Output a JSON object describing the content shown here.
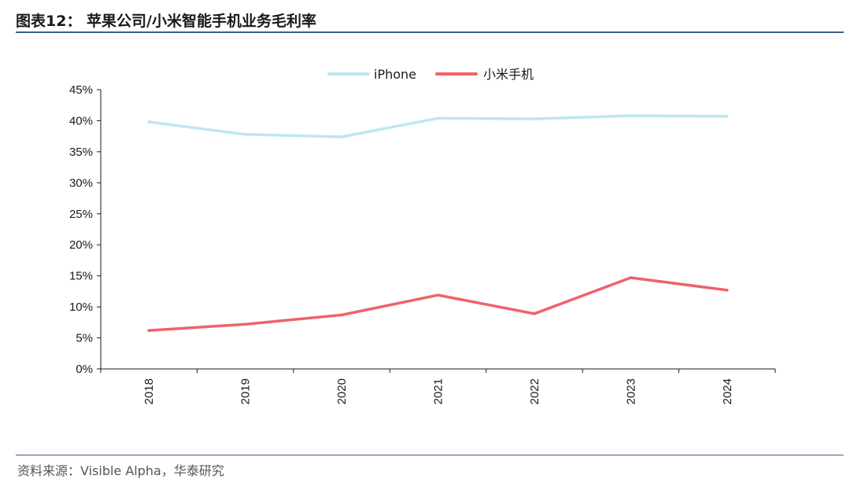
{
  "header": {
    "title": "图表12：  苹果公司/小米智能手机业务毛利率"
  },
  "footer": {
    "source": "资料来源：Visible Alpha，华泰研究"
  },
  "colors": {
    "iphone": "#bfe6f2",
    "xiaomi": "#f0626a",
    "rule": "#3b5f8a",
    "axis": "#1a1a1a"
  },
  "chart_data": {
    "type": "line",
    "categories": [
      "2018",
      "2019",
      "2020",
      "2021",
      "2022",
      "2023",
      "2024"
    ],
    "y_ticks": [
      "0%",
      "5%",
      "10%",
      "15%",
      "20%",
      "25%",
      "30%",
      "35%",
      "40%",
      "45%"
    ],
    "ylim": [
      0,
      45
    ],
    "unit": "%",
    "legend_position": "top",
    "grid": false,
    "series": [
      {
        "name": "iPhone",
        "color": "#bfe6f2",
        "values": [
          39.8,
          37.8,
          37.4,
          40.4,
          40.3,
          40.8,
          40.7
        ]
      },
      {
        "name": "小米手机",
        "color": "#f0626a",
        "values": [
          6.2,
          7.2,
          8.7,
          11.9,
          8.9,
          14.7,
          12.7
        ]
      }
    ]
  }
}
